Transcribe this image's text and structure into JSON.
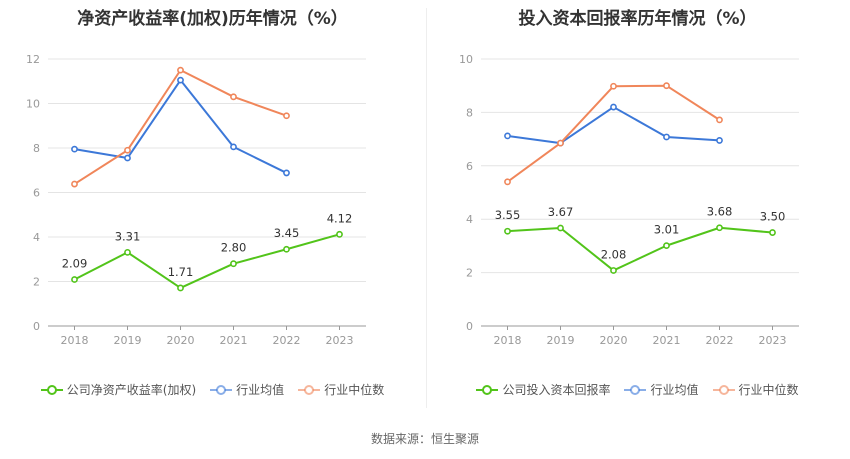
{
  "chart_data": [
    {
      "type": "line",
      "title": "净资产收益率(加权)历年情况（%）",
      "categories": [
        "2018",
        "2019",
        "2020",
        "2021",
        "2022",
        "2023"
      ],
      "ylim": [
        0,
        12
      ],
      "yticks": [
        0,
        2,
        4,
        6,
        8,
        10,
        12
      ],
      "grid": true,
      "legend_position": "bottom",
      "series": [
        {
          "name": "公司净资产收益率(加权)",
          "color": "#52c41a",
          "values": [
            2.09,
            3.31,
            1.71,
            2.8,
            3.45,
            4.12
          ],
          "labels": [
            "2.09",
            "3.31",
            "1.71",
            "2.80",
            "3.45",
            "4.12"
          ]
        },
        {
          "name": "行业均值",
          "color": "#3c78d8",
          "values": [
            7.95,
            7.55,
            11.05,
            8.05,
            6.88,
            null
          ]
        },
        {
          "name": "行业中位数",
          "color": "#f0865a",
          "values": [
            6.38,
            7.9,
            11.5,
            10.3,
            9.45,
            null
          ]
        }
      ]
    },
    {
      "type": "line",
      "title": "投入资本回报率历年情况（%）",
      "categories": [
        "2018",
        "2019",
        "2020",
        "2021",
        "2022",
        "2023"
      ],
      "ylim": [
        0,
        10
      ],
      "yticks": [
        0,
        2,
        4,
        6,
        8,
        10
      ],
      "grid": true,
      "legend_position": "bottom",
      "series": [
        {
          "name": "公司投入资本回报率",
          "color": "#52c41a",
          "values": [
            3.55,
            3.67,
            2.08,
            3.01,
            3.68,
            3.5
          ],
          "labels": [
            "3.55",
            "3.67",
            "2.08",
            "3.01",
            "3.68",
            "3.50"
          ]
        },
        {
          "name": "行业均值",
          "color": "#3c78d8",
          "values": [
            7.12,
            6.85,
            8.2,
            7.08,
            6.95,
            null
          ]
        },
        {
          "name": "行业中位数",
          "color": "#f0865a",
          "values": [
            5.4,
            6.85,
            8.98,
            9.0,
            7.72,
            null
          ]
        }
      ]
    }
  ],
  "footer": {
    "source": "数据来源：恒生聚源"
  }
}
